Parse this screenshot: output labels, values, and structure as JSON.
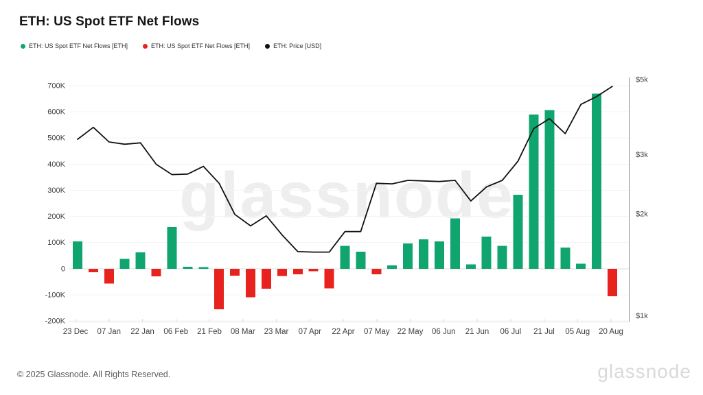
{
  "header": {
    "title": "ETH: US Spot ETF Net Flows"
  },
  "legend": [
    {
      "label": "ETH: US Spot ETF Net Flows [ETH]",
      "color": "#10a56e",
      "marker": "dot"
    },
    {
      "label": "ETH: US Spot ETF Net Flows [ETH]",
      "color": "#e8231d",
      "marker": "dot"
    },
    {
      "label": "ETH: Price [USD]",
      "color": "#111111",
      "marker": "dot"
    }
  ],
  "watermark": {
    "center_text": "glassnode"
  },
  "footer": {
    "copyright": "© 2025 Glassnode. All Rights Reserved.",
    "brand": "glassnode"
  },
  "colors": {
    "bar_positive": "#10a56e",
    "bar_negative": "#e8231d",
    "price_line": "#111111"
  },
  "chart_data": {
    "type": "bar+line",
    "title": "ETH: US Spot ETF Net Flows",
    "x_tick_labels": [
      "23 Dec",
      "07 Jan",
      "22 Jan",
      "06 Feb",
      "21 Feb",
      "08 Mar",
      "23 Mar",
      "07 Apr",
      "22 Apr",
      "07 May",
      "22 May",
      "06 Jun",
      "21 Jun",
      "06 Jul",
      "21 Jul",
      "05 Aug",
      "20 Aug"
    ],
    "left_axis": {
      "scale": "linear",
      "min": -200000,
      "max": 700000,
      "grid": true,
      "ticks": [
        {
          "label": "700K",
          "value": 700000
        },
        {
          "label": "600K",
          "value": 600000
        },
        {
          "label": "500K",
          "value": 500000
        },
        {
          "label": "400K",
          "value": 400000
        },
        {
          "label": "300K",
          "value": 300000
        },
        {
          "label": "200K",
          "value": 200000
        },
        {
          "label": "100K",
          "value": 100000
        },
        {
          "label": "0",
          "value": 0
        },
        {
          "label": "-100K",
          "value": -100000
        },
        {
          "label": "-200K",
          "value": -200000
        }
      ]
    },
    "right_axis": {
      "scale": "log",
      "min": 1000,
      "max": 5000,
      "ticks": [
        {
          "label": "$5k",
          "value": 5000
        },
        {
          "label": "$3k",
          "value": 3000
        },
        {
          "label": "$2k",
          "value": 2000
        },
        {
          "label": "$1k",
          "value": 1000
        }
      ]
    },
    "series": [
      {
        "name": "ETH: US Spot ETF Net Flows [ETH]",
        "type": "bar",
        "axis": "left",
        "values": [
          105000,
          -13000,
          -57000,
          38000,
          62000,
          -30000,
          160000,
          8000,
          6000,
          -155000,
          -27000,
          -110000,
          -77000,
          -28000,
          -22000,
          -10000,
          -75000,
          87000,
          65000,
          -22000,
          13000,
          97000,
          112000,
          104000,
          192000,
          16000,
          123000,
          87000,
          283000,
          590000,
          607000,
          81000,
          19000,
          670000,
          -105000
        ]
      },
      {
        "name": "ETH: Price [USD]",
        "type": "line",
        "axis": "right",
        "values": [
          3320,
          3600,
          3260,
          3210,
          3240,
          2800,
          2610,
          2620,
          2760,
          2460,
          1990,
          1840,
          1970,
          1730,
          1545,
          1540,
          1540,
          1770,
          1770,
          2460,
          2450,
          2510,
          2500,
          2490,
          2510,
          2180,
          2400,
          2510,
          2860,
          3570,
          3820,
          3450,
          4210,
          4440,
          4760
        ]
      }
    ]
  }
}
